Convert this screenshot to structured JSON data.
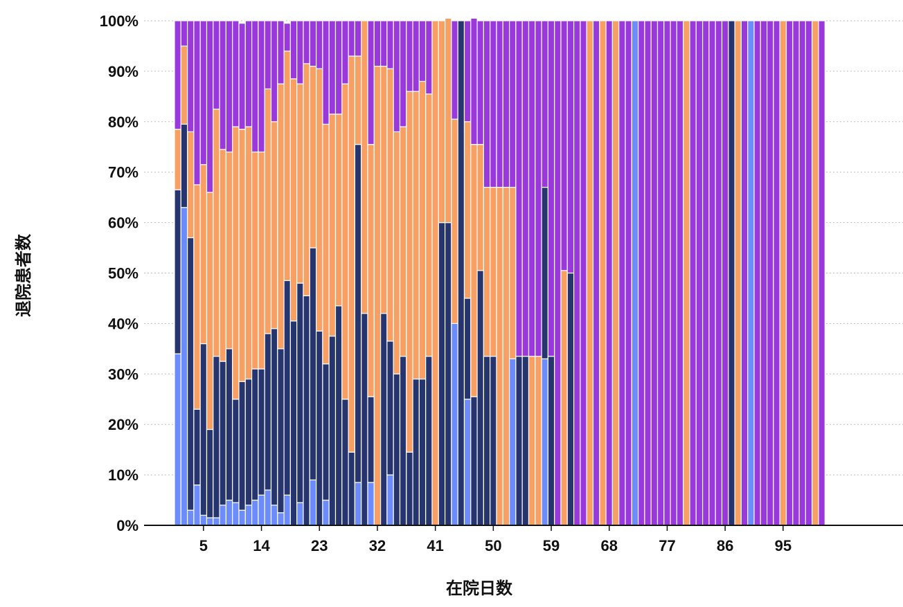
{
  "chart_data": {
    "type": "bar",
    "stacked": true,
    "normalized": true,
    "xlabel": "在院日数",
    "ylabel": "退院患者数",
    "x_tick_labels": [
      "5",
      "14",
      "23",
      "32",
      "41",
      "50",
      "59",
      "68",
      "77",
      "86",
      "95"
    ],
    "y_tick_labels": [
      "0%",
      "10%",
      "20%",
      "30%",
      "40%",
      "50%",
      "60%",
      "70%",
      "80%",
      "90%",
      "100%"
    ],
    "ylim": [
      0,
      100
    ],
    "grid": "horizontal-dotted",
    "colors": [
      "#6b8cfa",
      "#26356e",
      "#f8a064",
      "#9938db"
    ],
    "categories": [
      1,
      2,
      3,
      4,
      5,
      6,
      7,
      8,
      9,
      10,
      11,
      12,
      13,
      14,
      15,
      16,
      17,
      18,
      19,
      20,
      21,
      22,
      23,
      24,
      25,
      26,
      27,
      28,
      29,
      30,
      31,
      32,
      33,
      34,
      35,
      36,
      37,
      38,
      39,
      40,
      41,
      42,
      43,
      44,
      45,
      46,
      47,
      48,
      49,
      50,
      51,
      52,
      53,
      54,
      55,
      56,
      57,
      58,
      59,
      60,
      61,
      62,
      63,
      64,
      65,
      66,
      67,
      68,
      69,
      70,
      71,
      72,
      73,
      74,
      75,
      76,
      77,
      78,
      79,
      80,
      81,
      82,
      83,
      84,
      85,
      86,
      87,
      88,
      89,
      90,
      91,
      92,
      93,
      94,
      95,
      96,
      97,
      98,
      99,
      100,
      101
    ],
    "series": [
      {
        "values": [
          34,
          63,
          3,
          8,
          2,
          1.5,
          1.5,
          4,
          5,
          4.5,
          3,
          4,
          5,
          6,
          7,
          4,
          2.5,
          6,
          0,
          4.5,
          0,
          9,
          0,
          5,
          0,
          0,
          0,
          0,
          8.5,
          0,
          8.5,
          0,
          0,
          10,
          0,
          0,
          0,
          0,
          0,
          0,
          0,
          0,
          0,
          40,
          0,
          25,
          0,
          0,
          0,
          0,
          0,
          0,
          33,
          0,
          0,
          0,
          0,
          33,
          0,
          0,
          0,
          0,
          0,
          0,
          0,
          0,
          0,
          0,
          0,
          0,
          0,
          100,
          0,
          0,
          0,
          0,
          0,
          0,
          0,
          0,
          0,
          0,
          0,
          0,
          0,
          0,
          0,
          0,
          0,
          100,
          0,
          0,
          0,
          0,
          0,
          0,
          0,
          0,
          0,
          0,
          0
        ]
      },
      {
        "values": [
          32.5,
          16.5,
          54,
          15,
          34,
          17.5,
          32,
          28.5,
          30,
          20.5,
          25.5,
          25,
          26,
          25,
          31,
          35,
          32.5,
          42.5,
          40.5,
          43.5,
          45.5,
          46,
          38.5,
          27,
          37.5,
          43.5,
          25,
          14.5,
          67,
          42,
          17,
          0,
          42,
          26.5,
          30,
          33.5,
          14.5,
          29,
          29,
          33.5,
          0,
          60,
          60,
          0,
          100,
          20,
          25.5,
          50.5,
          33.5,
          33.5,
          0,
          0,
          0,
          33.5,
          33.5,
          0,
          0,
          34,
          33.5,
          0,
          0,
          50,
          0,
          0,
          0,
          0,
          0,
          0,
          0,
          0,
          0,
          0,
          0,
          0,
          0,
          0,
          0,
          0,
          0,
          0,
          0,
          0,
          0,
          0,
          0,
          0,
          100,
          0,
          0,
          0,
          0,
          0,
          0,
          0,
          0,
          0,
          0,
          0,
          0,
          0,
          0
        ]
      },
      {
        "values": [
          12,
          15.5,
          21,
          44.5,
          35.5,
          47,
          49,
          42,
          39,
          54,
          50,
          50,
          43,
          43,
          48.5,
          41,
          52.5,
          45.5,
          48,
          39.5,
          46,
          36,
          52,
          47.5,
          44,
          38,
          62.5,
          78.5,
          17.5,
          58,
          50,
          91,
          49,
          54,
          48,
          45.5,
          71.5,
          57,
          59,
          52,
          100,
          40,
          40.5,
          40.5,
          0,
          35,
          50,
          25,
          33.5,
          33.5,
          67,
          67,
          34,
          0,
          0,
          33.5,
          33.5,
          0,
          0,
          0,
          50.5,
          0,
          0,
          0,
          100,
          0,
          100,
          0,
          100,
          0,
          0,
          0,
          0,
          0,
          0,
          0,
          0,
          0,
          0,
          100,
          0,
          0,
          0,
          0,
          0,
          0,
          0,
          100,
          0,
          0,
          0,
          0,
          0,
          0,
          100,
          0,
          0,
          0,
          0,
          100,
          0
        ]
      },
      {
        "values": [
          21.5,
          5,
          22,
          32.5,
          28.5,
          34,
          17.5,
          25.5,
          26,
          21,
          21,
          21,
          26,
          26,
          13.5,
          20,
          12.5,
          5.5,
          11.5,
          12.5,
          8.5,
          9,
          9.5,
          20.5,
          18.5,
          18.5,
          12.5,
          7,
          7,
          0,
          24.5,
          9,
          9,
          9.5,
          22,
          21,
          14,
          14,
          12,
          14.5,
          0,
          0,
          0,
          19.5,
          0,
          20,
          25,
          24.5,
          33,
          33,
          33,
          33,
          33,
          66.5,
          66.5,
          66.5,
          66.5,
          33,
          66.5,
          100,
          49.5,
          50,
          100,
          100,
          0,
          100,
          0,
          100,
          0,
          100,
          100,
          0,
          100,
          100,
          100,
          100,
          100,
          100,
          100,
          0,
          100,
          100,
          100,
          100,
          100,
          100,
          0,
          0,
          100,
          0,
          100,
          100,
          100,
          100,
          0,
          100,
          100,
          100,
          100,
          0,
          100
        ]
      }
    ]
  }
}
